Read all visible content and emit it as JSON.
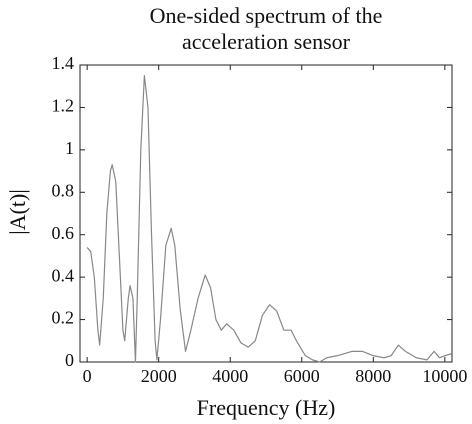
{
  "chart_data": {
    "type": "line",
    "title": [
      "One-sided spectrum of the",
      "acceleration sensor"
    ],
    "x_label": "Frequency (Hz)",
    "y_label": "|A(t)|",
    "x": [
      0,
      100,
      200,
      300,
      350,
      450,
      550,
      650,
      700,
      800,
      900,
      1000,
      1050,
      1150,
      1200,
      1280,
      1350,
      1400,
      1500,
      1600,
      1700,
      1800,
      1900,
      1950,
      2050,
      2200,
      2350,
      2450,
      2600,
      2750,
      2900,
      3100,
      3300,
      3450,
      3600,
      3750,
      3900,
      4100,
      4300,
      4500,
      4700,
      4900,
      5100,
      5300,
      5500,
      5700,
      5850,
      6100,
      6300,
      6500,
      6700,
      7000,
      7400,
      7700,
      8000,
      8300,
      8500,
      8700,
      8900,
      9200,
      9500,
      9700,
      9850,
      10000,
      10200
    ],
    "values": [
      0.54,
      0.52,
      0.4,
      0.15,
      0.08,
      0.3,
      0.7,
      0.9,
      0.93,
      0.85,
      0.5,
      0.15,
      0.1,
      0.3,
      0.36,
      0.3,
      0.0,
      0.3,
      1.0,
      1.35,
      1.2,
      0.6,
      0.1,
      0.01,
      0.2,
      0.55,
      0.63,
      0.55,
      0.25,
      0.05,
      0.15,
      0.3,
      0.41,
      0.35,
      0.2,
      0.15,
      0.18,
      0.15,
      0.09,
      0.07,
      0.1,
      0.22,
      0.27,
      0.24,
      0.15,
      0.15,
      0.1,
      0.03,
      0.01,
      0.0,
      0.02,
      0.03,
      0.05,
      0.05,
      0.03,
      0.02,
      0.03,
      0.08,
      0.05,
      0.02,
      0.01,
      0.05,
      0.02,
      0.03,
      0.04
    ],
    "color": "#888888",
    "xlim": [
      -200,
      10200
    ],
    "xticks": [
      0,
      2000,
      4000,
      6000,
      8000,
      10000
    ],
    "ylim": [
      0,
      1.4
    ],
    "yticks": [
      0,
      0.2,
      0.4,
      0.6,
      0.8,
      1,
      1.2,
      1.4
    ],
    "grid": false
  }
}
